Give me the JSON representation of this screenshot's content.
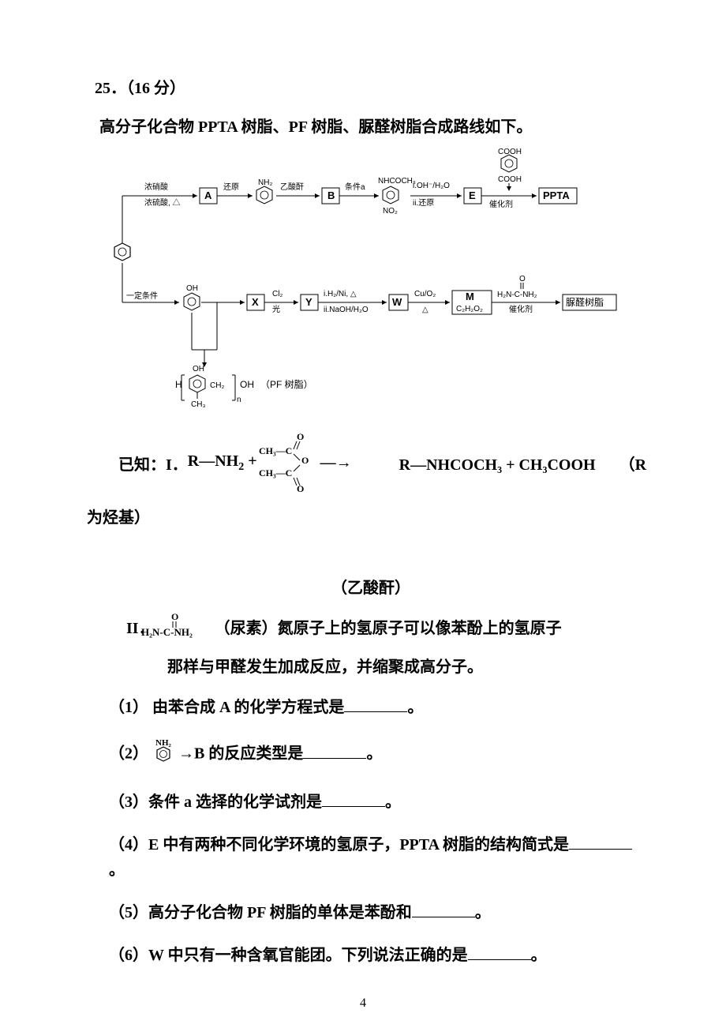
{
  "question_number": "25．（16 分）",
  "intro": "高分子化合物 PPTA 树脂、PF 树脂、脲醛树脂合成路线如下。",
  "known_label": "已知：I．",
  "known1_prefix": "R—NH",
  "known1_sub": "2",
  "known1_plus": " + ",
  "known1_arrow": "—→",
  "known1_rhs": "R—NHCOCH₃ + CH₃COOH　　（R",
  "known1_suffix": "为烃基）",
  "acetic": "（乙酸酐）",
  "known2_label": "II．",
  "known2_text": "（尿素）氮原子上的氢原子可以像苯酚上的氢原子",
  "known2_cont": "那样与甲醛发生加成反应，并缩聚成高分子。",
  "q1": "（1） 由苯合成 A 的化学方程式是",
  "q1_end": "。",
  "q2_pre": "（2）",
  "q2_mid": "→B 的反应类型是",
  "q2_end": "。",
  "q3": "（3）条件 a 选择的化学试剂是",
  "q3_end": "。",
  "q4": "（4）E 中有两种不同化学环境的氢原子，PPTA 树脂的结构简式是",
  "q4_end": "。",
  "q5": "（5）高分子化合物 PF 树脂的单体是苯酚和",
  "q5_end": "。",
  "q6": "（6）W 中只有一种含氧官能团。下列说法正确的是",
  "q6_end": "。",
  "page": "4",
  "blank_widths": {
    "q1": 80,
    "q2": 80,
    "q3": 80,
    "q4": 80,
    "q5": 80,
    "q6": 80
  },
  "colors": {
    "text": "#000000",
    "bg": "#ffffff",
    "line": "#000000"
  },
  "diagram": {
    "labels": {
      "nitration_top": "浓硝酸",
      "nitration_bot": "浓硫酸, △",
      "A": "A",
      "reduce": "还原",
      "nh2": "NH₂",
      "acetic_anhydride": "乙酸酐",
      "B": "B",
      "cond_a": "条件a",
      "nhcoch3": "NHCOCH₃",
      "no2": "NO₂",
      "step_i": "i.OH⁻/H₂O",
      "step_ii": "ii.还原",
      "E": "E",
      "cooh": "COOH",
      "catalyst": "催化剂",
      "ppta": "PPTA",
      "cond2": "一定条件",
      "oh": "OH",
      "X": "X",
      "cl2": "Cl₂",
      "light": "光",
      "Y": "Y",
      "h2ni": "i.H₂/Ni, △",
      "naoh": "ii.NaOH/H₂O",
      "W": "W",
      "cuo2": "Cu/O₂",
      "delta": "△",
      "M": "M",
      "m_formula": "C₂H₂O₂",
      "urea_arrow_top": "H₂N-C-NH₂",
      "urea_o": "O",
      "urea_resin": "脲醛树脂",
      "pf_resin": "（PF 树脂）",
      "pf_left": "H",
      "pf_right": "OH",
      "pf_ch2": "CH₂",
      "pf_ch3": "CH₃",
      "pf_n": "n"
    }
  },
  "acetic_struct": {
    "top": "O",
    "c1": "CH₃—C",
    "mid": "O",
    "c2": "CH₃—C",
    "bot": "O"
  }
}
